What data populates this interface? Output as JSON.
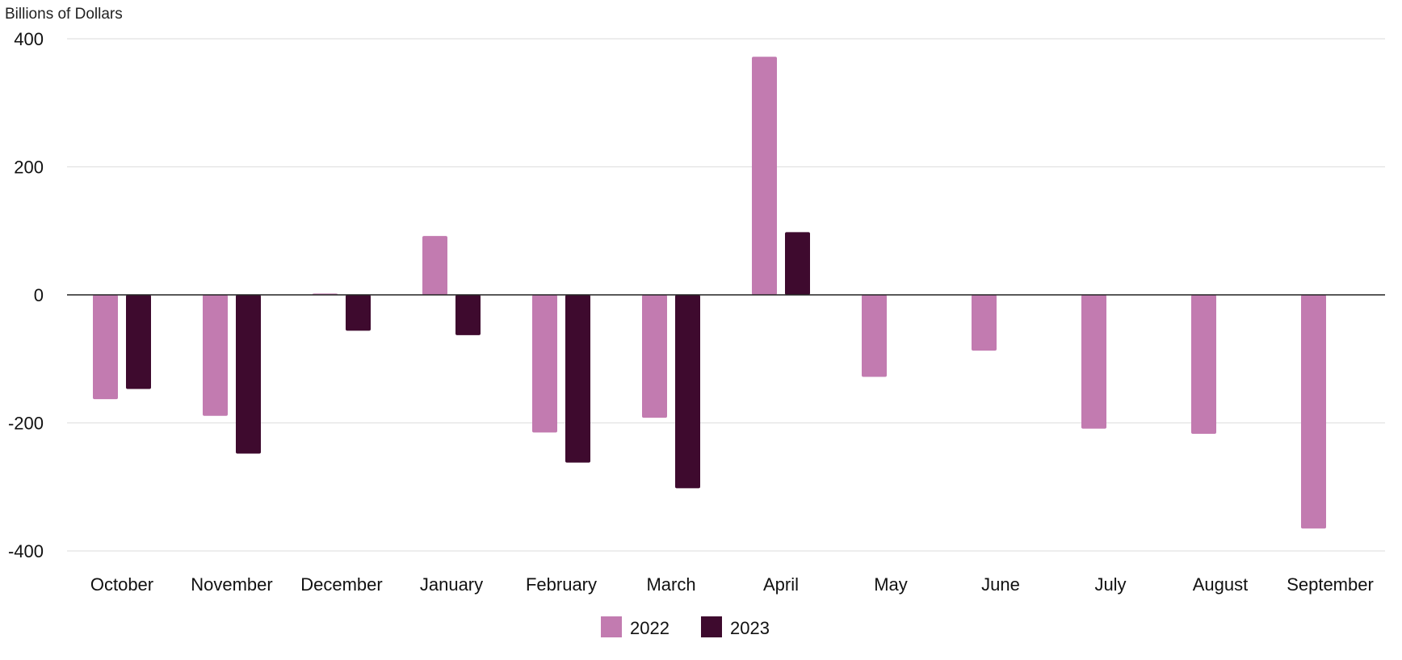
{
  "chart_data": {
    "type": "bar",
    "ylabel": "Billions of Dollars",
    "ylim": [
      -400,
      400
    ],
    "yticks": [
      400,
      200,
      0,
      -200,
      -400
    ],
    "grid": true,
    "legend_position": "bottom-center",
    "categories": [
      "October",
      "November",
      "December",
      "January",
      "February",
      "March",
      "April",
      "May",
      "June",
      "July",
      "August",
      "September"
    ],
    "series": [
      {
        "name": "2022",
        "color": "#c27bb0",
        "values": [
          -163,
          -189,
          2,
          92,
          -215,
          -192,
          372,
          -128,
          -87,
          -209,
          -217,
          -365
        ]
      },
      {
        "name": "2023",
        "color": "#3e0a2e",
        "values": [
          -147,
          -248,
          -56,
          -63,
          -262,
          -302,
          98,
          null,
          null,
          null,
          null,
          null
        ]
      }
    ]
  }
}
